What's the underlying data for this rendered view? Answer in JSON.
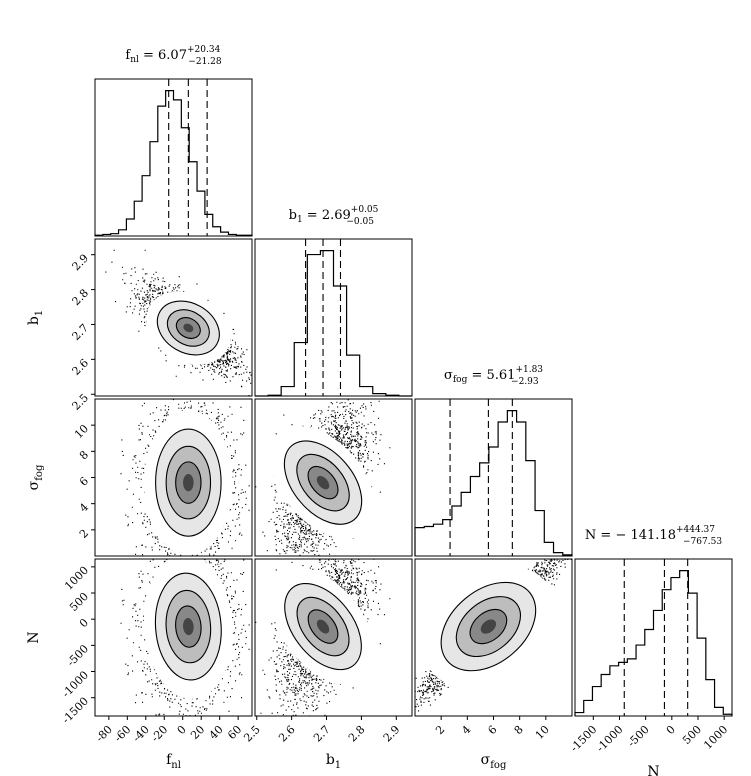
{
  "chart_data": {
    "type": "corner",
    "parameters": [
      {
        "key": "fnl",
        "label": "f",
        "label_sub": "nl",
        "title": {
          "prefix": "f",
          "sub": "nl",
          "value": " = 6.07",
          "plus": "+20.34",
          "minus": "−21.28"
        },
        "range": [
          -95,
          75
        ],
        "ticks": [
          -80,
          -60,
          -40,
          -20,
          0,
          20,
          40,
          60
        ],
        "quantiles": [
          -15.21,
          6.07,
          26.41
        ],
        "hist_values": [
          1,
          2,
          3,
          8,
          22,
          45,
          78,
          122,
          168,
          188,
          176,
          140,
          96,
          58,
          28,
          12,
          5,
          2,
          1,
          1
        ]
      },
      {
        "key": "b1",
        "label": "b",
        "label_sub": "1",
        "title": {
          "prefix": "b",
          "sub": "1",
          "value": " = 2.69",
          "plus": "+0.05",
          "minus": "−0.05"
        },
        "range": [
          2.495,
          2.945
        ],
        "ticks": [
          2.5,
          2.6,
          2.7,
          2.8,
          2.9
        ],
        "tick_labels": [
          "2.5",
          "2.6",
          "2.7",
          "2.8",
          "2.9"
        ],
        "quantiles": [
          2.64,
          2.69,
          2.74
        ],
        "hist_values": [
          0,
          1,
          12,
          68,
          180,
          185,
          140,
          52,
          12,
          3,
          1,
          0
        ]
      },
      {
        "key": "sigma_fog",
        "label": "σ",
        "label_sub": "fog",
        "title": {
          "prefix": "σ",
          "sub": "fog",
          "value": " = 5.61",
          "plus": "+1.83",
          "minus": "−2.93"
        },
        "range": [
          0,
          12
        ],
        "ticks": [
          2,
          4,
          6,
          8,
          10
        ],
        "quantiles": [
          2.68,
          5.61,
          7.44
        ],
        "hist_values": [
          25,
          26,
          28,
          32,
          44,
          56,
          70,
          82,
          96,
          118,
          128,
          118,
          84,
          40,
          12,
          3,
          1
        ]
      },
      {
        "key": "N",
        "label": "N",
        "label_sub": "",
        "title": {
          "prefix": "N",
          "sub": "",
          "value": " = − 141.18",
          "plus": "+444.37",
          "minus": "−767.53"
        },
        "range": [
          -1850,
          1150
        ],
        "ticks": [
          -1500,
          -1000,
          -500,
          0,
          500,
          1000
        ],
        "quantiles": [
          -908.71,
          -141.18,
          303.19
        ],
        "hist_values": [
          4,
          18,
          34,
          48,
          58,
          62,
          66,
          82,
          100,
          122,
          146,
          160,
          168,
          142,
          90,
          42,
          10,
          2
        ]
      }
    ],
    "contours_2d": {
      "b1_vs_fnl": {
        "mean": [
          6.07,
          2.69
        ],
        "sigma": [
          20.8,
          0.05
        ],
        "rho": -0.72
      },
      "sigma_fog_vs_fnl": {
        "mean": [
          6.07,
          5.61
        ],
        "sigma": [
          20.8,
          2.4
        ],
        "rho": 0.0
      },
      "sigma_fog_vs_b1": {
        "mean": [
          2.69,
          5.61
        ],
        "sigma": [
          0.05,
          2.4
        ],
        "rho": 0.55
      },
      "N_vs_fnl": {
        "mean": [
          6.07,
          -141.18
        ],
        "sigma": [
          20.8,
          600
        ],
        "rho": 0.05
      },
      "N_vs_b1": {
        "mean": [
          2.69,
          -141.18
        ],
        "sigma": [
          0.05,
          600
        ],
        "rho": 0.5
      },
      "N_vs_sigma_fog": {
        "mean": [
          5.61,
          -141.18
        ],
        "sigma": [
          2.4,
          600
        ],
        "rho": 0.97
      }
    },
    "grid": false,
    "colors": {
      "axes": "#000000",
      "hist": "#000000",
      "density": "#000000"
    }
  }
}
